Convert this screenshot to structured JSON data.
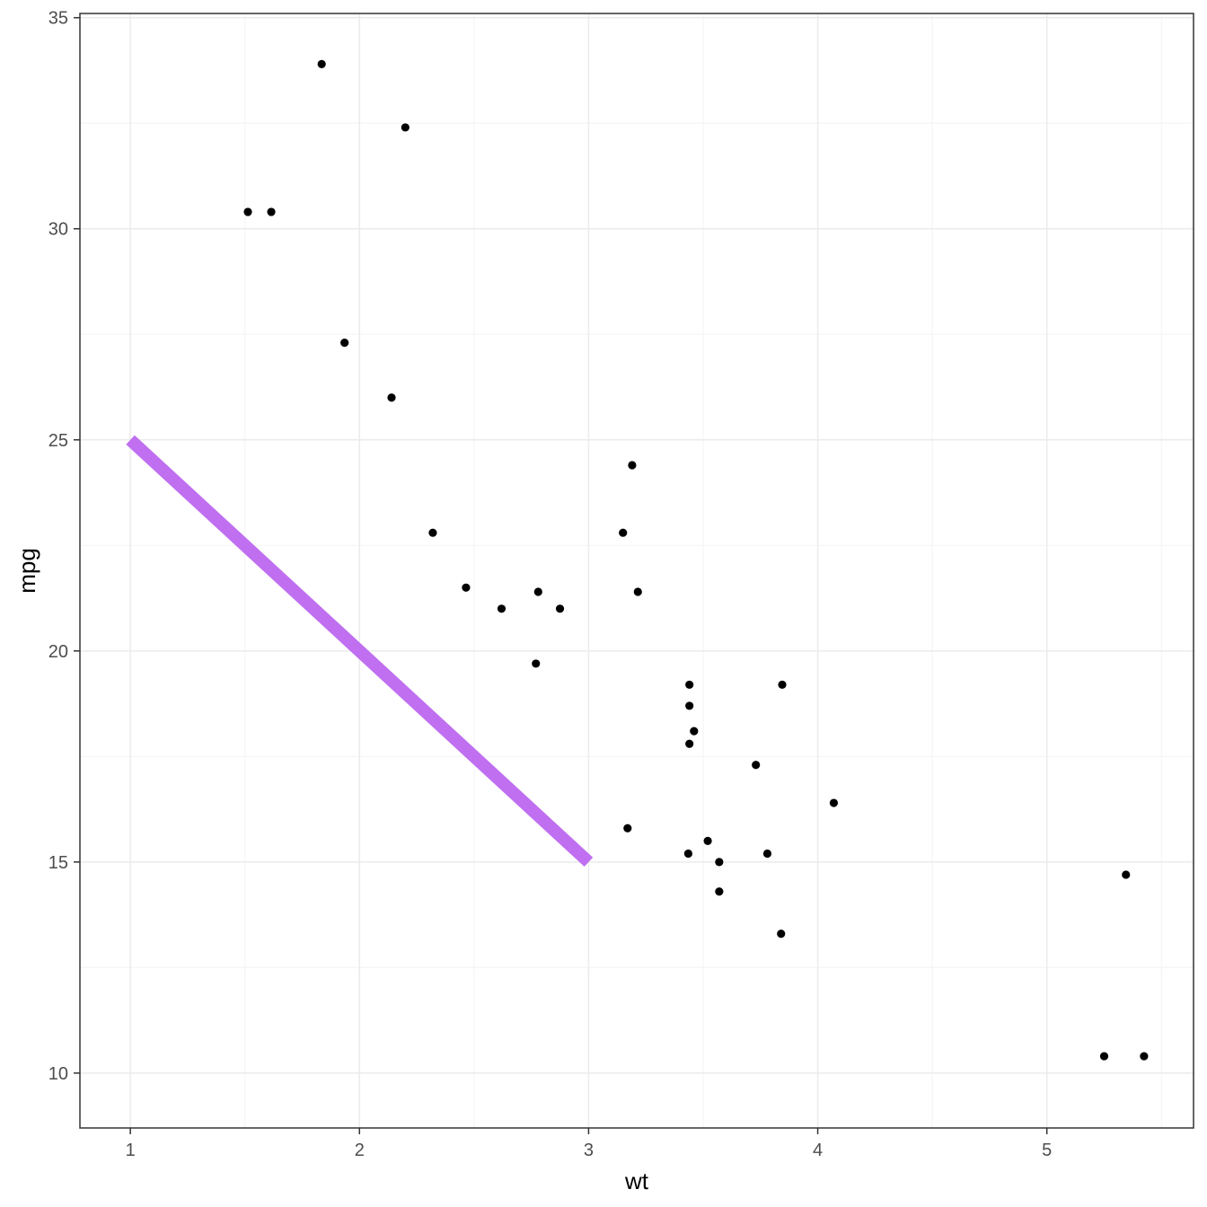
{
  "chart_data": {
    "type": "scatter",
    "title": "",
    "xlabel": "wt",
    "ylabel": "mpg",
    "xlim": [
      0.78,
      5.64
    ],
    "ylim": [
      8.7,
      35.1
    ],
    "x_ticks": [
      1,
      2,
      3,
      4,
      5
    ],
    "y_ticks": [
      10,
      15,
      20,
      25,
      30,
      35
    ],
    "x_tick_labels": [
      "1",
      "2",
      "3",
      "4",
      "5"
    ],
    "y_tick_labels": [
      "10",
      "15",
      "20",
      "25",
      "30",
      "35"
    ],
    "grid": true,
    "theme": "bw",
    "colors": {
      "points": "#000000",
      "segment": "#bf6ff0",
      "grid_major": "#ebebeb",
      "grid_minor": "#f5f5f5",
      "panel_border": "#333333"
    },
    "series": [
      {
        "type": "scatter",
        "points": [
          [
            2.62,
            21.0
          ],
          [
            2.875,
            21.0
          ],
          [
            2.32,
            22.8
          ],
          [
            3.215,
            21.4
          ],
          [
            3.44,
            18.7
          ],
          [
            3.46,
            18.1
          ],
          [
            3.57,
            14.3
          ],
          [
            3.19,
            24.4
          ],
          [
            3.15,
            22.8
          ],
          [
            3.44,
            19.2
          ],
          [
            3.44,
            17.8
          ],
          [
            4.07,
            16.4
          ],
          [
            3.73,
            17.3
          ],
          [
            3.78,
            15.2
          ],
          [
            5.25,
            10.4
          ],
          [
            5.424,
            10.4
          ],
          [
            5.345,
            14.7
          ],
          [
            2.2,
            32.4
          ],
          [
            1.615,
            30.4
          ],
          [
            1.835,
            33.9
          ],
          [
            2.465,
            21.5
          ],
          [
            3.52,
            15.5
          ],
          [
            3.435,
            15.2
          ],
          [
            3.84,
            13.3
          ],
          [
            3.845,
            19.2
          ],
          [
            1.935,
            27.3
          ],
          [
            2.14,
            26.0
          ],
          [
            1.513,
            30.4
          ],
          [
            3.17,
            15.8
          ],
          [
            2.77,
            19.7
          ],
          [
            3.57,
            15.0
          ],
          [
            2.78,
            21.4
          ]
        ]
      },
      {
        "type": "segment",
        "x": [
          1,
          3
        ],
        "y": [
          25,
          15
        ]
      }
    ]
  }
}
